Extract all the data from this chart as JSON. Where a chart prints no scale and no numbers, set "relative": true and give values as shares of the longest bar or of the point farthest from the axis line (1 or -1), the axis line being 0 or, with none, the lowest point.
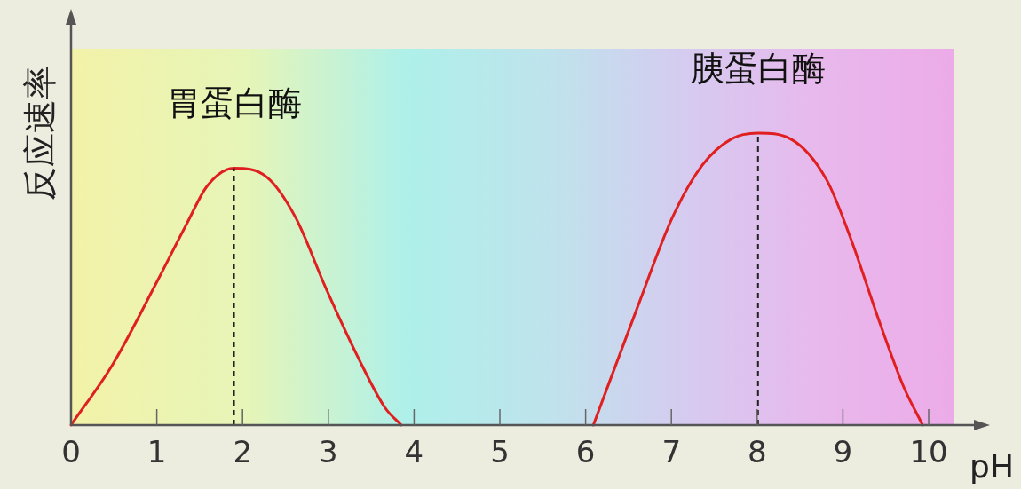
{
  "chart_data": {
    "type": "line",
    "relative": true,
    "xlabel": "pH",
    "ylabel": "反应速率",
    "xlim": [
      0,
      10.3
    ],
    "xticks": [
      0,
      1,
      2,
      3,
      4,
      5,
      6,
      7,
      8,
      9,
      10
    ],
    "grid": false,
    "marker": "none",
    "line_style": "solid",
    "series": [
      {
        "name": "胃蛋白酶",
        "color": "#e02020",
        "x": [
          0,
          0.49,
          1.0,
          1.35,
          1.59,
          1.9,
          2.28,
          2.62,
          2.97,
          3.35,
          3.66,
          3.85
        ],
        "values": [
          0,
          0.21,
          0.49,
          0.69,
          0.82,
          0.88,
          0.85,
          0.71,
          0.47,
          0.23,
          0.06,
          0
        ]
      },
      {
        "name": "胰蛋白酶",
        "color": "#e02020",
        "x": [
          6.09,
          6.6,
          7.01,
          7.36,
          7.7,
          8.01,
          8.39,
          8.81,
          9.09,
          9.43,
          9.71,
          9.93
        ],
        "values": [
          0,
          0.4,
          0.71,
          0.89,
          0.98,
          1,
          0.98,
          0.84,
          0.64,
          0.35,
          0.13,
          0
        ]
      }
    ],
    "ref_lines": [
      {
        "axis": "x",
        "value": 1.9,
        "label": null,
        "color": "#222222",
        "line_style": "dashed"
      },
      {
        "axis": "x",
        "value": 8.01,
        "label": null,
        "color": "#222222",
        "line_style": "dashed"
      }
    ]
  }
}
